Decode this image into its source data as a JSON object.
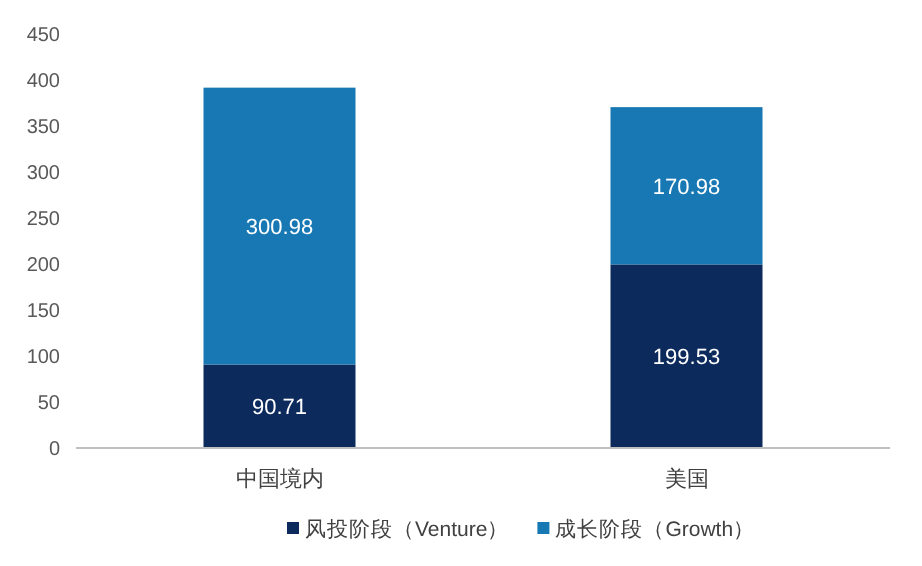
{
  "chart_data": {
    "type": "bar",
    "stacked": true,
    "categories": [
      "中国境内",
      "美国"
    ],
    "series": [
      {
        "name": "风投阶段（Venture）",
        "color": "#0c2a5c",
        "values": [
          90.71,
          199.53
        ]
      },
      {
        "name": "成长阶段（Growth）",
        "color": "#1878b4",
        "values": [
          300.98,
          170.98
        ]
      }
    ],
    "data_labels": true,
    "ylim": [
      0,
      450
    ],
    "yticks": [
      0,
      50,
      100,
      150,
      200,
      250,
      300,
      350,
      400,
      450
    ],
    "grid": false,
    "legend": "bottom"
  }
}
